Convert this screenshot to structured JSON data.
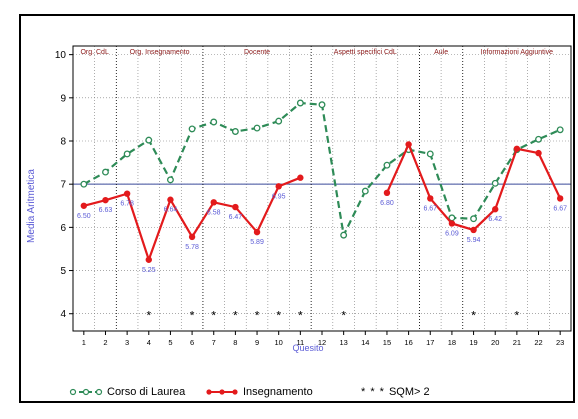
{
  "chart_data": {
    "type": "line",
    "title": "",
    "xlabel": "Quesito",
    "ylabel": "Media Aritmetica",
    "ylim": [
      3.6,
      10.2
    ],
    "yticks": [
      "4",
      "5",
      "6",
      "7",
      "8",
      "9",
      "10"
    ],
    "categories": [
      "1",
      "2",
      "3",
      "4",
      "5",
      "6",
      "7",
      "8",
      "9",
      "10",
      "11",
      "12",
      "13",
      "14",
      "15",
      "16",
      "17",
      "18",
      "19",
      "20",
      "21",
      "22",
      "23"
    ],
    "reference_line": 7,
    "sections": [
      {
        "label": "Org. CdL",
        "from": 1,
        "to": 2
      },
      {
        "label": "Org. Insegnamento",
        "from": 3,
        "to": 6
      },
      {
        "label": "Docente",
        "from": 7,
        "to": 11
      },
      {
        "label": "Aspetti specifici CdL",
        "from": 12,
        "to": 16
      },
      {
        "label": "Aule",
        "from": 17,
        "to": 18
      },
      {
        "label": "Informazioni Aggiuntive",
        "from": 19,
        "to": 23
      }
    ],
    "series": [
      {
        "name": "Corso di Laurea",
        "color": "#2e8b57",
        "style": "dashed",
        "values": [
          7.0,
          7.28,
          7.7,
          8.02,
          7.1,
          8.28,
          8.44,
          8.22,
          8.3,
          8.46,
          8.88,
          8.84,
          5.82,
          6.84,
          7.44,
          7.8,
          7.7,
          6.22,
          6.2,
          7.02,
          7.8,
          8.04,
          8.26
        ]
      },
      {
        "name": "Insegnamento",
        "color": "#e31a1c",
        "style": "solid",
        "values": [
          6.5,
          6.63,
          6.78,
          5.25,
          6.64,
          5.78,
          6.58,
          6.47,
          5.89,
          6.95,
          7.15,
          null,
          null,
          null,
          6.8,
          7.92,
          6.67,
          6.09,
          5.94,
          6.42,
          7.82,
          7.72,
          6.67
        ]
      }
    ],
    "data_labels": [
      {
        "i": 1,
        "text": "6.50"
      },
      {
        "i": 2,
        "text": "6.63"
      },
      {
        "i": 3,
        "text": "6.78"
      },
      {
        "i": 4,
        "text": "5.25"
      },
      {
        "i": 5,
        "text": "6.64"
      },
      {
        "i": 6,
        "text": "5.78"
      },
      {
        "i": 7,
        "text": "6.58"
      },
      {
        "i": 8,
        "text": "6.47"
      },
      {
        "i": 9,
        "text": "5.89"
      },
      {
        "i": 10,
        "text": "6.95"
      },
      {
        "i": 15,
        "text": "6.80"
      },
      {
        "i": 17,
        "text": "6.67"
      },
      {
        "i": 18,
        "text": "6.09"
      },
      {
        "i": 19,
        "text": "5.94"
      },
      {
        "i": 20,
        "text": "6.42"
      },
      {
        "i": 23,
        "text": "6.67"
      }
    ],
    "sqm_marker_text": "*",
    "sqm_markers": [
      4,
      6,
      7,
      8,
      9,
      10,
      11,
      13,
      19,
      21
    ],
    "sqm_y": 4,
    "colors": {
      "axis_label": "#5b5bd6",
      "section_label": "#8b1a1a",
      "reference": "#3a4a9a",
      "data_label": "#5b5bd6"
    },
    "legend": {
      "placement": "bottom",
      "items": [
        {
          "label": "Corso di Laurea"
        },
        {
          "label": "Insegnamento"
        },
        {
          "label": "SQM> 2",
          "marker": "* * *"
        }
      ]
    }
  }
}
